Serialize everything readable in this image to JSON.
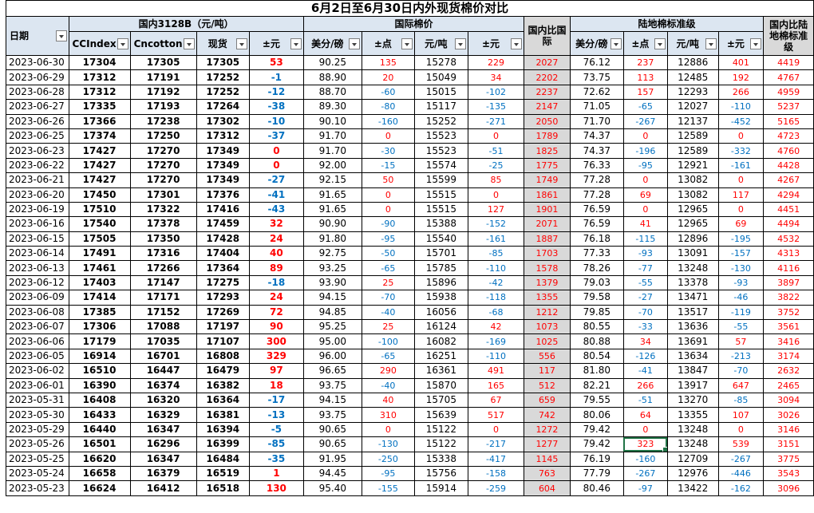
{
  "title": "6月2日至6月30日内外现货棉价对比",
  "groups": {
    "domestic": "国内3128B（元/吨）",
    "intl": "国际棉价",
    "land": "陆地棉标准级"
  },
  "headers": {
    "date": "日期",
    "ccindex": "CCIndex",
    "cncotton": "Cncotton",
    "spot": "现货",
    "chg1": "±元",
    "usc_lb": "美分/磅",
    "chg_pt": "±点",
    "yuan_ton": "元/吨",
    "chg2": "±元",
    "spread_intl": "国内比国际",
    "usc_lb2": "美分/磅",
    "chg_pt2": "±点",
    "yuan_ton2": "元/吨",
    "chg3": "±元",
    "spread_land": "国内比陆地棉标准级"
  },
  "colors": {
    "header_bg": "#dce6f1",
    "gray": "#d9d9d9",
    "red": "#ff0000",
    "blue": "#0070c0",
    "select": "#217346"
  },
  "rows": [
    [
      "2023-06-30",
      "17304",
      "17305",
      "17305",
      "53",
      "90.25",
      "135",
      "15278",
      "229",
      "2027",
      "76.12",
      "237",
      "12886",
      "401",
      "4419"
    ],
    [
      "2023-06-29",
      "17312",
      "17191",
      "17252",
      "-1",
      "88.90",
      "20",
      "15049",
      "34",
      "2202",
      "73.75",
      "113",
      "12485",
      "192",
      "4767"
    ],
    [
      "2023-06-28",
      "17312",
      "17192",
      "17252",
      "-12",
      "88.70",
      "-60",
      "15015",
      "-102",
      "2237",
      "72.62",
      "157",
      "12293",
      "266",
      "4959"
    ],
    [
      "2023-06-27",
      "17335",
      "17193",
      "17264",
      "-38",
      "89.30",
      "-80",
      "15117",
      "-135",
      "2147",
      "71.05",
      "-65",
      "12027",
      "-110",
      "5237"
    ],
    [
      "2023-06-26",
      "17366",
      "17238",
      "17302",
      "-10",
      "90.10",
      "-160",
      "15252",
      "-271",
      "2050",
      "71.70",
      "-267",
      "12137",
      "-452",
      "5165"
    ],
    [
      "2023-06-25",
      "17374",
      "17250",
      "17312",
      "-37",
      "91.70",
      "0",
      "15523",
      "0",
      "1789",
      "74.37",
      "0",
      "12589",
      "0",
      "4723"
    ],
    [
      "2023-06-23",
      "17427",
      "17270",
      "17349",
      "0",
      "91.70",
      "-30",
      "15523",
      "-51",
      "1825",
      "74.37",
      "-196",
      "12589",
      "-332",
      "4760"
    ],
    [
      "2023-06-22",
      "17427",
      "17270",
      "17349",
      "0",
      "92.00",
      "-15",
      "15574",
      "-25",
      "1775",
      "76.33",
      "-95",
      "12921",
      "-161",
      "4428"
    ],
    [
      "2023-06-21",
      "17427",
      "17270",
      "17349",
      "-27",
      "92.15",
      "50",
      "15599",
      "85",
      "1749",
      "77.28",
      "0",
      "13082",
      "0",
      "4267"
    ],
    [
      "2023-06-20",
      "17450",
      "17301",
      "17376",
      "-41",
      "91.65",
      "0",
      "15515",
      "0",
      "1861",
      "77.28",
      "69",
      "13082",
      "117",
      "4294"
    ],
    [
      "2023-06-19",
      "17510",
      "17322",
      "17416",
      "-43",
      "91.65",
      "0",
      "15515",
      "127",
      "1901",
      "76.59",
      "0",
      "12965",
      "0",
      "4451"
    ],
    [
      "2023-06-16",
      "17540",
      "17378",
      "17459",
      "32",
      "90.90",
      "-90",
      "15388",
      "-152",
      "2071",
      "76.59",
      "41",
      "12965",
      "69",
      "4494"
    ],
    [
      "2023-06-15",
      "17505",
      "17350",
      "17428",
      "24",
      "91.80",
      "-95",
      "15540",
      "-161",
      "1887",
      "76.18",
      "-115",
      "12896",
      "-195",
      "4532"
    ],
    [
      "2023-06-14",
      "17491",
      "17316",
      "17404",
      "40",
      "92.75",
      "-50",
      "15701",
      "-85",
      "1703",
      "77.33",
      "-93",
      "13091",
      "-157",
      "4313"
    ],
    [
      "2023-06-13",
      "17461",
      "17266",
      "17364",
      "89",
      "93.25",
      "-65",
      "15785",
      "-110",
      "1578",
      "78.26",
      "-77",
      "13248",
      "-130",
      "4116"
    ],
    [
      "2023-06-12",
      "17403",
      "17147",
      "17275",
      "-18",
      "93.90",
      "25",
      "15896",
      "-42",
      "1379",
      "79.03",
      "-55",
      "13378",
      "-93",
      "3897"
    ],
    [
      "2023-06-09",
      "17414",
      "17171",
      "17293",
      "24",
      "94.15",
      "-70",
      "15938",
      "-118",
      "1355",
      "79.58",
      "-27",
      "13471",
      "-46",
      "3822"
    ],
    [
      "2023-06-08",
      "17385",
      "17152",
      "17269",
      "72",
      "94.85",
      "-40",
      "16056",
      "-68",
      "1212",
      "79.85",
      "-70",
      "13517",
      "-119",
      "3752"
    ],
    [
      "2023-06-07",
      "17306",
      "17088",
      "17197",
      "90",
      "95.25",
      "25",
      "16124",
      "42",
      "1073",
      "80.55",
      "-33",
      "13636",
      "-55",
      "3561"
    ],
    [
      "2023-06-06",
      "17179",
      "17035",
      "17107",
      "300",
      "95.00",
      "-100",
      "16082",
      "-169",
      "1025",
      "80.88",
      "34",
      "13691",
      "57",
      "3416"
    ],
    [
      "2023-06-05",
      "16914",
      "16701",
      "16808",
      "329",
      "96.00",
      "-65",
      "16251",
      "-110",
      "556",
      "80.54",
      "-126",
      "13634",
      "-213",
      "3174"
    ],
    [
      "2023-06-02",
      "16510",
      "16447",
      "16479",
      "97",
      "96.65",
      "290",
      "16361",
      "491",
      "117",
      "81.80",
      "-41",
      "13847",
      "-70",
      "2632"
    ],
    [
      "2023-06-01",
      "16390",
      "16374",
      "16382",
      "18",
      "93.75",
      "-40",
      "15870",
      "165",
      "512",
      "82.21",
      "266",
      "13917",
      "647",
      "2465"
    ],
    [
      "2023-05-31",
      "16408",
      "16320",
      "16364",
      "-17",
      "94.15",
      "40",
      "15705",
      "67",
      "659",
      "79.55",
      "-51",
      "13270",
      "-85",
      "3094"
    ],
    [
      "2023-05-30",
      "16433",
      "16329",
      "16381",
      "-13",
      "93.75",
      "310",
      "15639",
      "517",
      "742",
      "80.06",
      "64",
      "13355",
      "107",
      "3026"
    ],
    [
      "2023-05-29",
      "16440",
      "16347",
      "16394",
      "-5",
      "90.65",
      "0",
      "15122",
      "0",
      "1272",
      "79.42",
      "0",
      "13248",
      "0",
      "3146"
    ],
    [
      "2023-05-26",
      "16501",
      "16296",
      "16399",
      "-85",
      "90.65",
      "-130",
      "15122",
      "-217",
      "1277",
      "79.42",
      "323",
      "13248",
      "539",
      "3151"
    ],
    [
      "2023-05-25",
      "16620",
      "16347",
      "16484",
      "-35",
      "91.95",
      "-250",
      "15338",
      "-417",
      "1145",
      "76.19",
      "-160",
      "12709",
      "-267",
      "3775"
    ],
    [
      "2023-05-24",
      "16658",
      "16379",
      "16519",
      "1",
      "94.45",
      "-95",
      "15756",
      "-158",
      "763",
      "77.79",
      "-267",
      "12976",
      "-446",
      "3543"
    ],
    [
      "2023-05-23",
      "16624",
      "16412",
      "16518",
      "130",
      "95.40",
      "-155",
      "15914",
      "-259",
      "604",
      "80.46",
      "-97",
      "13422",
      "-162",
      "3096"
    ]
  ]
}
